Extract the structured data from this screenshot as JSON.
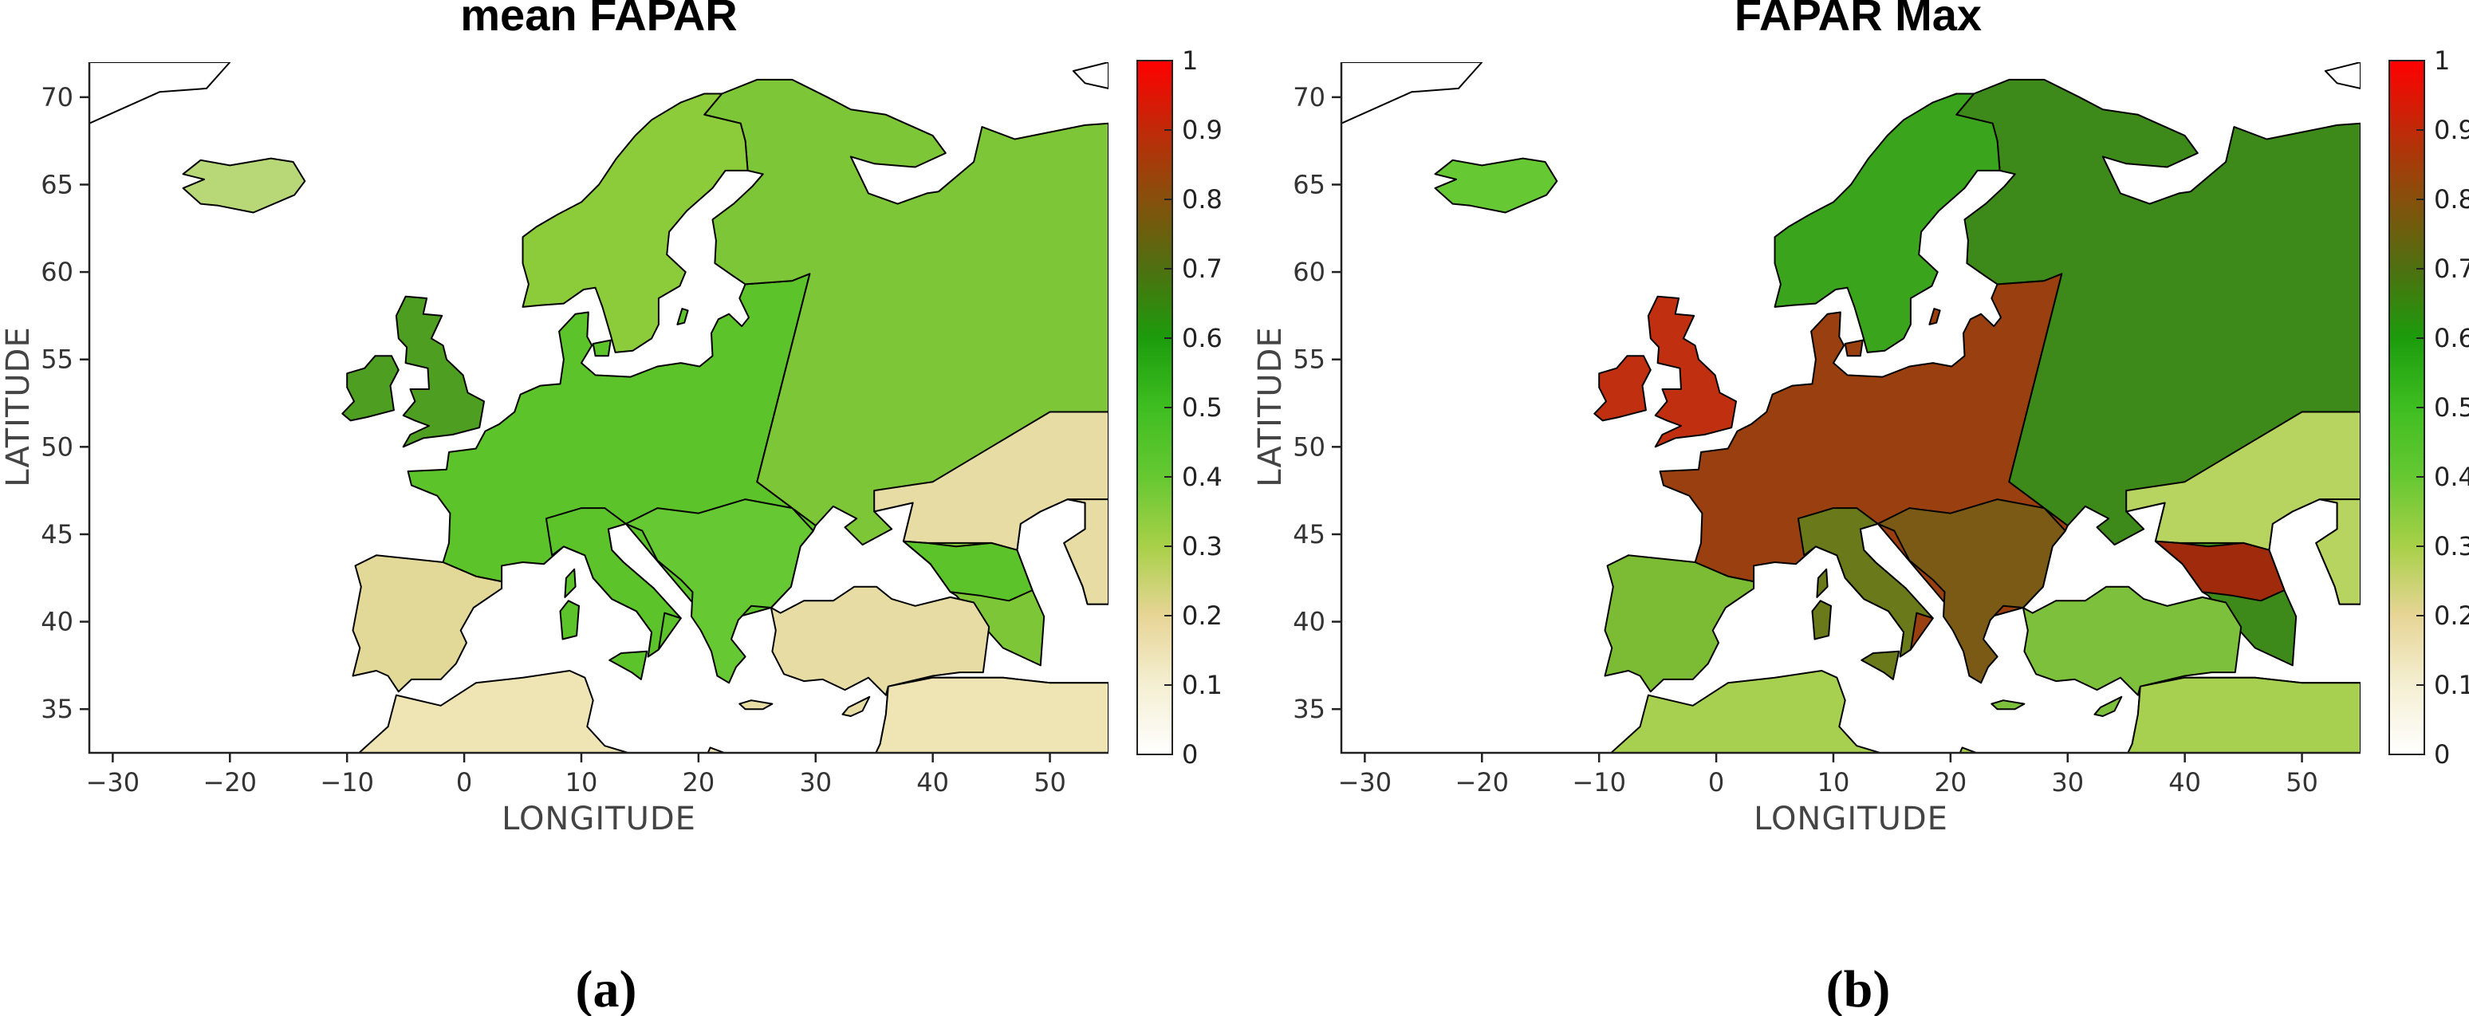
{
  "colorbar": {
    "stops": [
      {
        "v": 0.0,
        "c": "#ffffff"
      },
      {
        "v": 0.1,
        "c": "#f4efd2"
      },
      {
        "v": 0.2,
        "c": "#e7d596"
      },
      {
        "v": 0.3,
        "c": "#a8d048"
      },
      {
        "v": 0.4,
        "c": "#66c832"
      },
      {
        "v": 0.5,
        "c": "#3ebe20"
      },
      {
        "v": 0.6,
        "c": "#1c9c0c"
      },
      {
        "v": 0.7,
        "c": "#4e7010"
      },
      {
        "v": 0.8,
        "c": "#86500c"
      },
      {
        "v": 0.9,
        "c": "#c02a08"
      },
      {
        "v": 1.0,
        "c": "#ff0000"
      }
    ],
    "ticks": [
      "0",
      "0.1",
      "0.2",
      "0.3",
      "0.4",
      "0.5",
      "0.6",
      "0.7",
      "0.8",
      "0.9",
      "1"
    ]
  },
  "panels": [
    {
      "title": "mean FAPAR",
      "caption": "(a)",
      "x_label": "LONGITUDE",
      "y_label": "LATITUDE",
      "xlim": [
        -32,
        55
      ],
      "ylim": [
        32.5,
        72
      ],
      "x_ticks": [
        -30,
        -20,
        -10,
        0,
        10,
        20,
        30,
        40,
        50
      ],
      "y_ticks": [
        35,
        40,
        45,
        50,
        55,
        60,
        65,
        70
      ],
      "x_tick_labels": [
        "−30",
        "−20",
        "−10",
        "0",
        "10",
        "20",
        "30",
        "40",
        "50"
      ],
      "y_tick_labels": [
        "35",
        "40",
        "45",
        "50",
        "55",
        "60",
        "65",
        "70"
      ],
      "region_colors": {
        "scandinavia": "#8ccc3a",
        "finland_russia": "#7cc638",
        "central": "#5cc42a",
        "british_isles": "#4e9e22",
        "iberia": "#e2d898",
        "italy": "#5cc42a",
        "balkans": "#66c832",
        "turkey": "#e6dca4",
        "north_africa": "#efe4b4",
        "iceland": "#b8d878",
        "steppe": "#e6dca4",
        "caucasus": "#5cc42a"
      }
    },
    {
      "title": "FAPAR Max",
      "caption": "(b)",
      "x_label": "LONGITUDE",
      "y_label": "LATITUDE",
      "xlim": [
        -32,
        55
      ],
      "ylim": [
        32.5,
        72
      ],
      "x_ticks": [
        -30,
        -20,
        -10,
        0,
        10,
        20,
        30,
        40,
        50
      ],
      "y_ticks": [
        35,
        40,
        45,
        50,
        55,
        60,
        65,
        70
      ],
      "x_tick_labels": [
        "−30",
        "−20",
        "−10",
        "0",
        "10",
        "20",
        "30",
        "40",
        "50"
      ],
      "y_tick_labels": [
        "35",
        "40",
        "45",
        "50",
        "55",
        "60",
        "65",
        "70"
      ],
      "region_colors": {
        "scandinavia": "#3aa41c",
        "finland_russia": "#3d8a1a",
        "central": "#9a4010",
        "british_isles": "#c03010",
        "iberia": "#7cbc34",
        "italy": "#6a7a1a",
        "balkans": "#7a5a14",
        "turkey": "#7cc03c",
        "north_africa": "#a8d050",
        "iceland": "#66c832",
        "steppe": "#b8d460",
        "caucasus": "#a02a0c"
      }
    }
  ]
}
